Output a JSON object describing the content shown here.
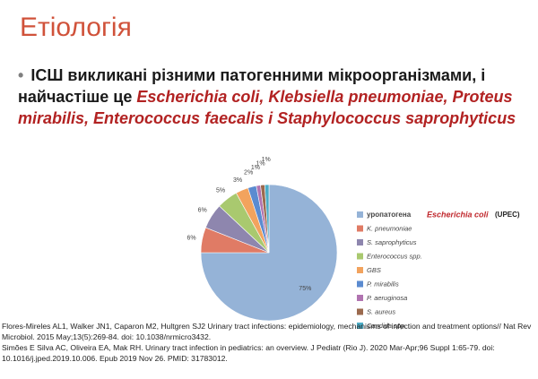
{
  "slide": {
    "title": "Етіологія",
    "bullet": {
      "plain": "ІСШ викликані різними патогенними мікроорганізмами, і найчастіше це ",
      "highlight": "Escherichia coli, Klebsiella pneumoniae, Proteus mirabilis, Enterococcus faecalis і Staphylococcus saprophyticus"
    }
  },
  "chart_data": {
    "type": "pie",
    "annotation": "Escherichia coli",
    "annotation_suffix": "(UPEC)",
    "series": [
      {
        "name": "уропатогена",
        "color": "#95b3d7",
        "values": [
          75
        ],
        "value_labels": [
          "75%"
        ]
      },
      {
        "name": "K. pneumoniae",
        "color": "#e07b65",
        "values": [
          6
        ],
        "value_labels": [
          "6%"
        ]
      },
      {
        "name": "S. saprophyticus",
        "color": "#8e86ae",
        "values": [
          6
        ],
        "value_labels": [
          "6%"
        ]
      },
      {
        "name": "Enterococcus spp.",
        "color": "#a9c96f",
        "values": [
          5
        ],
        "value_labels": [
          "5%"
        ]
      },
      {
        "name": "GBS",
        "color": "#f2a35e",
        "values": [
          3
        ],
        "value_labels": [
          "3%"
        ]
      },
      {
        "name": "P. mirabilis",
        "color": "#5b8bd0",
        "values": [
          2
        ],
        "value_labels": [
          "2%"
        ]
      },
      {
        "name": "P. aeruginosa",
        "color": "#b073b0",
        "values": [
          1
        ],
        "value_labels": [
          "1%"
        ]
      },
      {
        "name": "S. aureus",
        "color": "#9b6a4e",
        "values": [
          1
        ],
        "value_labels": [
          "1%"
        ]
      },
      {
        "name": "Candida spp.",
        "color": "#4bacc6",
        "values": [
          1
        ],
        "value_labels": [
          "1%"
        ]
      }
    ]
  },
  "references": [
    "Flores-Mireles AL1, Walker JN1, Caparon M2, Hultgren SJ2 Urinary tract infections: epidemiology, mechanisms of infection and treatment options// Nat Rev Microbiol. 2015 May;13(5):269-84. doi: 10.1038/nrmicro3432.",
    "Simões E Silva AC, Oliveira EA, Mak RH. Urinary tract infection in pediatrics: an overview. J Pediatr (Rio J). 2020 Mar-Apr;96 Suppl 1:65-79. doi: 10.1016/j.jped.2019.10.006. Epub 2019 Nov 26. PMID: 31783012."
  ]
}
